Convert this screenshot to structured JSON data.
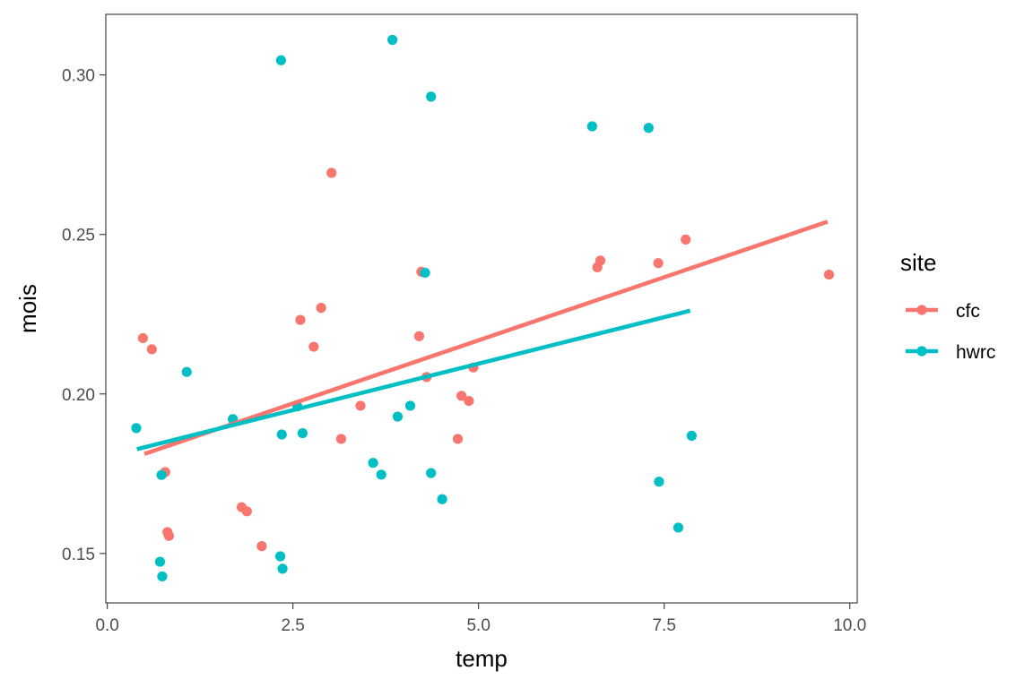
{
  "chart_data": {
    "type": "scatter",
    "xlabel": "temp",
    "ylabel": "mois",
    "xlim": [
      -0.02,
      10.1
    ],
    "ylim": [
      0.1345,
      0.319
    ],
    "x_ticks": [
      0.0,
      2.5,
      5.0,
      7.5,
      10.0
    ],
    "x_tick_labels": [
      "0.0",
      "2.5",
      "5.0",
      "7.5",
      "10.0"
    ],
    "y_ticks": [
      0.15,
      0.2,
      0.25,
      0.3
    ],
    "y_tick_labels": [
      "0.15",
      "0.20",
      "0.25",
      "0.30"
    ],
    "grid": false,
    "legend": {
      "title": "site",
      "position": "right",
      "entries": [
        "cfc",
        "hwrc"
      ]
    },
    "series": [
      {
        "name": "cfc",
        "color": "#F8766D",
        "points": [
          [
            0.48,
            0.2175
          ],
          [
            0.6,
            0.214
          ],
          [
            0.78,
            0.1755
          ],
          [
            0.81,
            0.1567
          ],
          [
            0.83,
            0.1555
          ],
          [
            1.81,
            0.1645
          ],
          [
            1.88,
            0.1632
          ],
          [
            2.08,
            0.1523
          ],
          [
            2.6,
            0.2232
          ],
          [
            2.78,
            0.2148
          ],
          [
            2.88,
            0.227
          ],
          [
            3.02,
            0.2693
          ],
          [
            3.15,
            0.1859
          ],
          [
            3.41,
            0.1963
          ],
          [
            4.2,
            0.2181
          ],
          [
            4.23,
            0.2383
          ],
          [
            4.3,
            0.2053
          ],
          [
            4.72,
            0.1859
          ],
          [
            4.77,
            0.1994
          ],
          [
            4.87,
            0.1978
          ],
          [
            4.93,
            0.2083
          ],
          [
            6.6,
            0.2397
          ],
          [
            6.64,
            0.2418
          ],
          [
            7.42,
            0.241
          ],
          [
            7.79,
            0.2484
          ],
          [
            9.72,
            0.2374
          ]
        ],
        "trend": {
          "x": [
            0.5,
            9.7
          ],
          "y": [
            0.1812,
            0.254
          ]
        }
      },
      {
        "name": "hwrc",
        "color": "#00BFC4",
        "points": [
          [
            0.39,
            0.1893
          ],
          [
            0.71,
            0.1474
          ],
          [
            0.73,
            0.1746
          ],
          [
            0.74,
            0.1428
          ],
          [
            1.07,
            0.2069
          ],
          [
            1.69,
            0.1921
          ],
          [
            2.33,
            0.1491
          ],
          [
            2.34,
            0.3046
          ],
          [
            2.35,
            0.1873
          ],
          [
            2.36,
            0.1452
          ],
          [
            2.56,
            0.1961
          ],
          [
            2.63,
            0.1877
          ],
          [
            3.58,
            0.1784
          ],
          [
            3.69,
            0.1747
          ],
          [
            3.84,
            0.311
          ],
          [
            3.91,
            0.1929
          ],
          [
            4.08,
            0.1963
          ],
          [
            4.28,
            0.238
          ],
          [
            4.36,
            0.2932
          ],
          [
            4.36,
            0.1752
          ],
          [
            4.51,
            0.167
          ],
          [
            6.53,
            0.2839
          ],
          [
            7.29,
            0.2834
          ],
          [
            7.43,
            0.1725
          ],
          [
            7.69,
            0.1581
          ],
          [
            7.87,
            0.1869
          ]
        ],
        "trend": {
          "x": [
            0.4,
            7.85
          ],
          "y": [
            0.1827,
            0.2261
          ]
        }
      }
    ]
  }
}
